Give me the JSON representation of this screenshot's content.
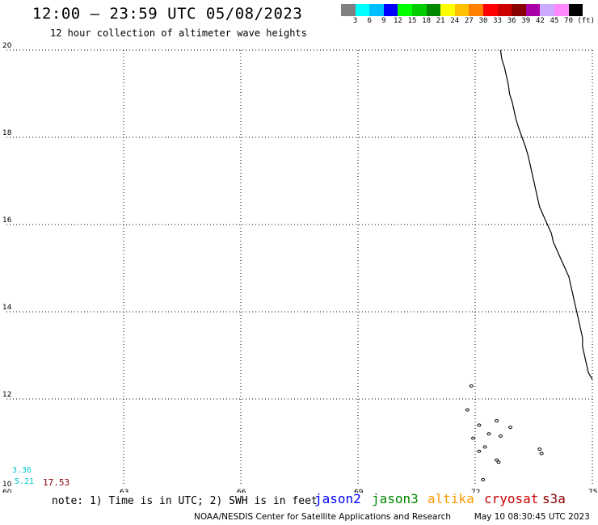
{
  "title": "12:00 – 23:59 UTC 05/08/2023",
  "subtitle": "12 hour collection of altimeter wave heights",
  "colorbar": {
    "colors": [
      "#808080",
      "#00ffff",
      "#00bfff",
      "#0000ff",
      "#00ff00",
      "#00cc00",
      "#008800",
      "#ffff00",
      "#ffc000",
      "#ff8000",
      "#ff0000",
      "#cc0000",
      "#880000",
      "#aa00aa",
      "#ccaaff",
      "#ff88ff",
      "#000000"
    ],
    "labels": [
      "3",
      "6",
      "9",
      "12",
      "15",
      "18",
      "21",
      "24",
      "27",
      "30",
      "33",
      "36",
      "39",
      "42",
      "45",
      "70"
    ],
    "unit": "(ft)"
  },
  "map": {
    "lon_ticks": [
      "60",
      "63",
      "66",
      "69",
      "72",
      "75"
    ],
    "lat_ticks": [
      "10",
      "12",
      "14",
      "16",
      "18",
      "20"
    ],
    "lon_range": [
      60,
      75
    ],
    "lat_range": [
      10,
      20
    ]
  },
  "coastline": [
    [
      72.65,
      20.0
    ],
    [
      72.68,
      19.8
    ],
    [
      72.75,
      19.6
    ],
    [
      72.8,
      19.4
    ],
    [
      72.85,
      19.2
    ],
    [
      72.88,
      19.0
    ],
    [
      72.95,
      18.8
    ],
    [
      73.0,
      18.6
    ],
    [
      73.05,
      18.4
    ],
    [
      73.12,
      18.2
    ],
    [
      73.2,
      18.0
    ],
    [
      73.28,
      17.8
    ],
    [
      73.35,
      17.6
    ],
    [
      73.4,
      17.4
    ],
    [
      73.45,
      17.2
    ],
    [
      73.5,
      17.0
    ],
    [
      73.55,
      16.8
    ],
    [
      73.6,
      16.6
    ],
    [
      73.65,
      16.4
    ],
    [
      73.75,
      16.2
    ],
    [
      73.85,
      16.0
    ],
    [
      73.95,
      15.8
    ],
    [
      74.0,
      15.6
    ],
    [
      74.1,
      15.4
    ],
    [
      74.2,
      15.2
    ],
    [
      74.3,
      15.0
    ],
    [
      74.4,
      14.8
    ],
    [
      74.45,
      14.6
    ],
    [
      74.5,
      14.4
    ],
    [
      74.55,
      14.2
    ],
    [
      74.6,
      14.0
    ],
    [
      74.65,
      13.8
    ],
    [
      74.7,
      13.6
    ],
    [
      74.75,
      13.4
    ],
    [
      74.75,
      13.2
    ],
    [
      74.8,
      13.0
    ],
    [
      74.85,
      12.8
    ],
    [
      74.9,
      12.6
    ],
    [
      75.0,
      12.45
    ]
  ],
  "islands": [
    [
      71.9,
      12.3
    ],
    [
      71.8,
      11.75
    ],
    [
      72.1,
      11.4
    ],
    [
      72.55,
      11.5
    ],
    [
      72.9,
      11.35
    ],
    [
      71.95,
      11.1
    ],
    [
      72.35,
      11.2
    ],
    [
      72.65,
      11.15
    ],
    [
      72.1,
      10.8
    ],
    [
      72.25,
      10.9
    ],
    [
      72.55,
      10.6
    ],
    [
      72.2,
      10.15
    ],
    [
      73.65,
      10.85
    ],
    [
      73.7,
      10.75
    ],
    [
      72.6,
      10.55
    ]
  ],
  "values": [
    {
      "text": "3.36",
      "color": "#00c8c8"
    },
    {
      "text": "5.21",
      "color": "#00c8c8"
    },
    {
      "text": "17.53",
      "color": "#880000"
    }
  ],
  "note": "note: 1) Time is in UTC; 2) SWH is in feet",
  "missions": [
    {
      "name": "jason2",
      "color": "#0000ff"
    },
    {
      "name": "jason3",
      "color": "#008800"
    },
    {
      "name": "altika",
      "color": "#ff9900"
    },
    {
      "name": "cryosat",
      "color": "#cc0000"
    },
    {
      "name": "s3a",
      "color": "#880000"
    }
  ],
  "credit": "NOAA/NESDIS Center for Satellite Applications and Research",
  "timestamp": "May 10 08:30:45 UTC 2023"
}
